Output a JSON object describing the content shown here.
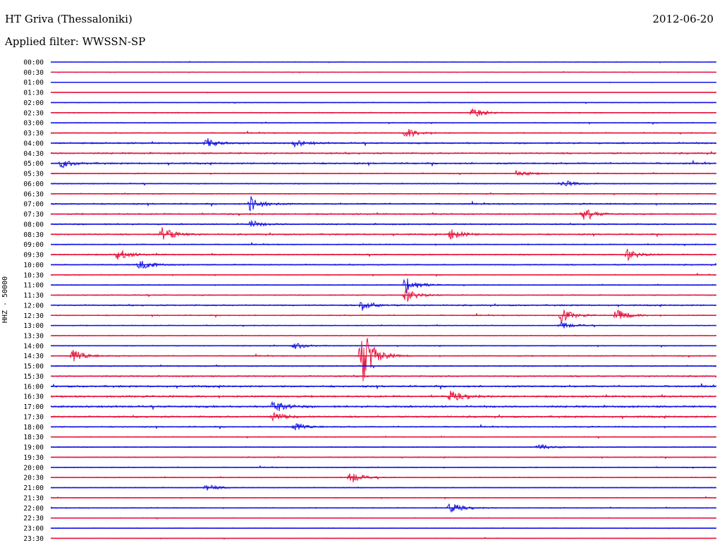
{
  "header": {
    "station": "HT Griva (Thessaloniki)",
    "date": "2012-06-20",
    "filter": "Applied filter: WWSSN-SP"
  },
  "chart_data": {
    "type": "line",
    "ylabel": "HHZ - 50000",
    "rows": [
      "00:00",
      "00:30",
      "01:00",
      "01:30",
      "02:00",
      "02:30",
      "03:00",
      "03:30",
      "04:00",
      "04:30",
      "05:00",
      "05:30",
      "06:00",
      "06:30",
      "07:00",
      "07:30",
      "08:00",
      "08:30",
      "09:00",
      "09:30",
      "10:00",
      "10:30",
      "11:00",
      "11:30",
      "12:00",
      "12:30",
      "13:00",
      "13:30",
      "14:00",
      "14:30",
      "15:00",
      "15:30",
      "16:00",
      "16:30",
      "17:00",
      "17:30",
      "18:00",
      "18:30",
      "19:00",
      "19:30",
      "20:00",
      "20:30",
      "21:00",
      "21:30",
      "22:00",
      "22:30",
      "23:00",
      "23:30"
    ],
    "series_colors": [
      "#1414e6",
      "#e6143c"
    ],
    "noise_level": [
      0.3,
      0.35,
      0.25,
      0.2,
      0.35,
      0.5,
      0.5,
      0.6,
      0.9,
      0.9,
      0.9,
      0.6,
      0.6,
      0.6,
      0.8,
      0.8,
      0.8,
      0.8,
      0.6,
      0.7,
      0.7,
      0.5,
      0.5,
      0.6,
      0.8,
      0.6,
      0.5,
      0.5,
      0.5,
      0.6,
      0.7,
      0.8,
      1.0,
      1.0,
      1.1,
      1.0,
      0.7,
      0.5,
      0.6,
      0.5,
      0.5,
      0.5,
      0.5,
      0.4,
      0.5,
      0.4,
      0.3,
      0.3
    ],
    "events": [
      {
        "row": 5,
        "minute": 19,
        "amplitude": 8
      },
      {
        "row": 7,
        "minute": 16,
        "amplitude": 8
      },
      {
        "row": 8,
        "minute": 7,
        "amplitude": 6
      },
      {
        "row": 8,
        "minute": 11,
        "amplitude": 5
      },
      {
        "row": 10,
        "minute": 0.5,
        "amplitude": 6
      },
      {
        "row": 11,
        "minute": 21,
        "amplitude": 5
      },
      {
        "row": 12,
        "minute": 23,
        "amplitude": 6
      },
      {
        "row": 14,
        "minute": 9,
        "amplitude": 11
      },
      {
        "row": 15,
        "minute": 24,
        "amplitude": 8
      },
      {
        "row": 16,
        "minute": 9,
        "amplitude": 5
      },
      {
        "row": 17,
        "minute": 5,
        "amplitude": 12
      },
      {
        "row": 17,
        "minute": 18,
        "amplitude": 8
      },
      {
        "row": 19,
        "minute": 3,
        "amplitude": 9
      },
      {
        "row": 19,
        "minute": 26,
        "amplitude": 8
      },
      {
        "row": 20,
        "minute": 4,
        "amplitude": 9
      },
      {
        "row": 22,
        "minute": 16,
        "amplitude": 14
      },
      {
        "row": 23,
        "minute": 16,
        "amplitude": 10
      },
      {
        "row": 24,
        "minute": 14,
        "amplitude": 8
      },
      {
        "row": 25,
        "minute": 23,
        "amplitude": 10
      },
      {
        "row": 25,
        "minute": 25.5,
        "amplitude": 9
      },
      {
        "row": 26,
        "minute": 23,
        "amplitude": 6
      },
      {
        "row": 28,
        "minute": 11,
        "amplitude": 5
      },
      {
        "row": 29,
        "minute": 1,
        "amplitude": 10
      },
      {
        "row": 29,
        "minute": 14,
        "amplitude": 45
      },
      {
        "row": 33,
        "minute": 18,
        "amplitude": 8
      },
      {
        "row": 34,
        "minute": 10,
        "amplitude": 10
      },
      {
        "row": 35,
        "minute": 10,
        "amplitude": 7
      },
      {
        "row": 36,
        "minute": 11,
        "amplitude": 6
      },
      {
        "row": 38,
        "minute": 22,
        "amplitude": 5
      },
      {
        "row": 41,
        "minute": 13.5,
        "amplitude": 9
      },
      {
        "row": 42,
        "minute": 7,
        "amplitude": 5
      },
      {
        "row": 44,
        "minute": 18,
        "amplitude": 8
      }
    ]
  }
}
